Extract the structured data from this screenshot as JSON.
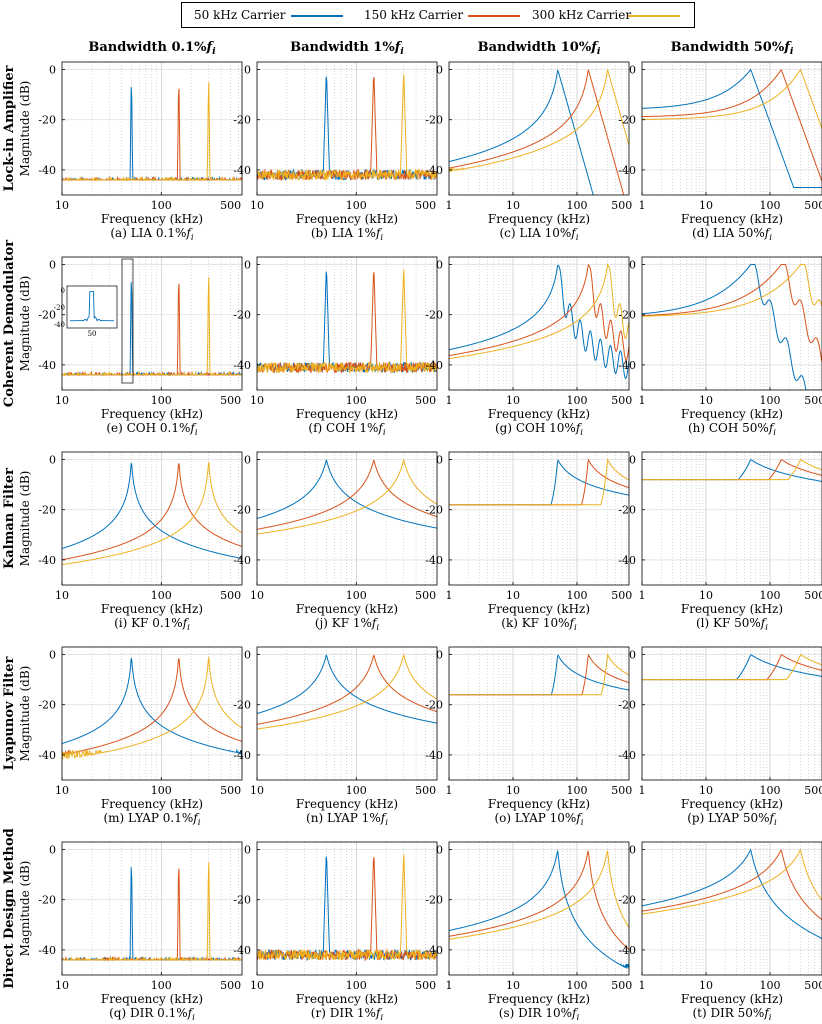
{
  "legend": [
    {
      "label": "50 kHz Carrier",
      "color": "#0072BD"
    },
    {
      "label": "150 kHz Carrier",
      "color": "#D95319"
    },
    {
      "label": "300 kHz Carrier",
      "color": "#EDB120"
    }
  ],
  "column_titles": [
    "Bandwidth 0.1%fi",
    "Bandwidth 1%fi",
    "Bandwidth 10%fi",
    "Bandwidth 50%fi"
  ],
  "row_titles": [
    "Lock-in Amplifier",
    "Coherent Demodulator",
    "Kalman Filter",
    "Lyapunov Filter",
    "Direct Design Method"
  ],
  "ylabel": "Magnitude (dB)",
  "xlabel": "Frequency (kHz)",
  "panel_captions": [
    [
      "(a) LIA 0.1%fi",
      "(b) LIA 1%fi",
      "(c) LIA 10%fi",
      "(d) LIA 50%fi"
    ],
    [
      "(e) COH 0.1%fi",
      "(f) COH 1%fi",
      "(g) COH 10%fi",
      "(h) COH 50%fi"
    ],
    [
      "(i) KF 0.1%fi",
      "(j) KF 1%fi",
      "(k) KF 10%fi",
      "(l) KF 50%fi"
    ],
    [
      "(m) LYAP 0.1%fi",
      "(n) LYAP 1%fi",
      "(o) LYAP 10%fi",
      "(p) LYAP 50%fi"
    ],
    [
      "(q) DIR 0.1%fi",
      "(r) DIR 1%fi",
      "(s) DIR 10%fi",
      "(t) DIR 50%fi"
    ]
  ],
  "inset": {
    "yticks": [
      "0",
      "-20",
      "-40"
    ],
    "xtick": "50"
  },
  "chart_data": {
    "type": "line",
    "xscale": "log",
    "carriers_khz": [
      50,
      150,
      300
    ],
    "ylim": [
      -50,
      3
    ],
    "yticks": [
      0,
      -20,
      -40
    ],
    "xlim_by_column": [
      [
        10,
        650
      ],
      [
        10,
        650
      ],
      [
        1,
        650
      ],
      [
        1,
        650
      ]
    ],
    "xticks_by_column": [
      [
        10,
        100
      ],
      [
        10,
        100
      ],
      [
        1,
        10,
        100
      ],
      [
        1,
        10,
        100
      ]
    ],
    "xtick_labels": {
      "1": "1",
      "10": "10",
      "100": "100",
      "500": "500"
    },
    "grid": true,
    "legend_position": "top",
    "approx_profiles": {
      "LIA_0.1": {
        "floor_db": -45,
        "peak_db": 0
      },
      "LIA_1": {
        "floor_db": -42,
        "peak_db": 0
      },
      "LIA_10": {
        "floor_db": -40,
        "peak_db": 0
      },
      "LIA_50": {
        "low_freq_db": [
          -16,
          -19,
          -20
        ],
        "peak_db": 0
      },
      "COH_0.1": {
        "floor_db": -45,
        "peak_db": 0
      },
      "COH_1": {
        "floor_db": -41,
        "peak_db": 0
      },
      "COH_10": {
        "floor_db": -45,
        "peak_db": 0
      },
      "COH_50": {
        "low_freq_db": -21,
        "peak_db": 0
      },
      "KF_0.1": {
        "floor_db": -45,
        "peak_db": 0
      },
      "KF_1": {
        "floor_db": -36,
        "peak_db": 0
      },
      "KF_10": {
        "low_freq_db": -18,
        "peak_db": 0
      },
      "KF_50": {
        "low_freq_db": -8,
        "peak_db": 0
      },
      "LYAP_0.1": {
        "floor_db": -40,
        "peak_db": 0
      },
      "LYAP_1": {
        "floor_db": -36,
        "peak_db": 0
      },
      "LYAP_10": {
        "low_freq_db": -16,
        "peak_db": 0
      },
      "LYAP_50": {
        "low_freq_db": -10,
        "peak_db": 0
      },
      "DIR_0.1": {
        "floor_db": -45,
        "peak_db": 0
      },
      "DIR_1": {
        "floor_db": -42,
        "peak_db": 0
      },
      "DIR_10": {
        "floor_db": -40,
        "peak_db": 0
      },
      "DIR_50": {
        "low_freq_db": -33,
        "peak_db": 0
      }
    }
  }
}
